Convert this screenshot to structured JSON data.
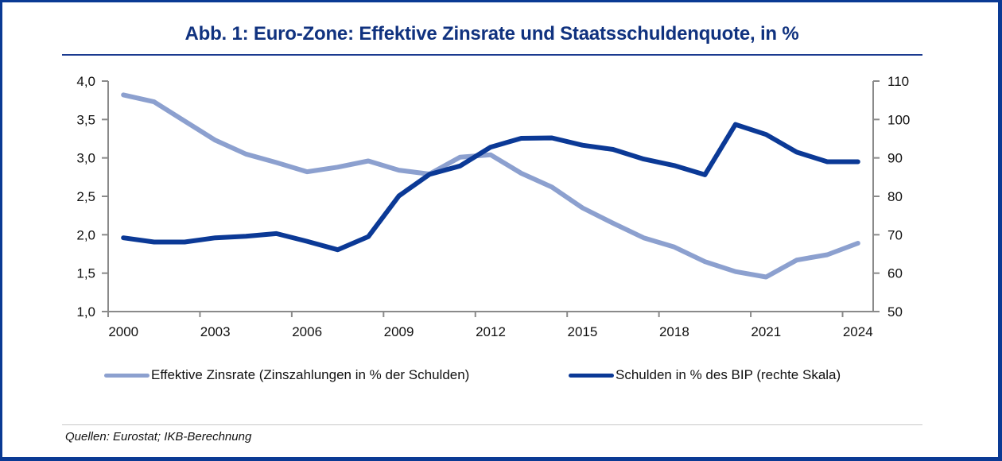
{
  "title": "Abb. 1: Euro-Zone: Effektive Zinsrate und Staatsschuldenquote, in %",
  "source": "Quellen: Eurostat; IKB-Berechnung",
  "colors": {
    "frame": "#0a3a94",
    "title": "#10327f",
    "series_light": "#8ca0cf",
    "series_dark": "#0b3996",
    "axis": "#8a8a8a"
  },
  "chart_data": {
    "type": "line",
    "title": "Abb. 1: Euro-Zone: Effektive Zinsrate und Staatsschuldenquote, in %",
    "xlabel": "",
    "ylabel_left": "",
    "ylabel_right": "",
    "x": [
      2000,
      2001,
      2002,
      2003,
      2004,
      2005,
      2006,
      2007,
      2008,
      2009,
      2010,
      2011,
      2012,
      2013,
      2014,
      2015,
      2016,
      2017,
      2018,
      2019,
      2020,
      2021,
      2022,
      2023,
      2024
    ],
    "x_tick_labels": [
      "2000",
      "2003",
      "2006",
      "2009",
      "2012",
      "2015",
      "2018",
      "2021",
      "2024"
    ],
    "y_left": {
      "range": [
        1.0,
        4.0
      ],
      "ticks": [
        "1,0",
        "1,5",
        "2,0",
        "2,5",
        "3,0",
        "3,5",
        "4,0"
      ],
      "tick_values": [
        1.0,
        1.5,
        2.0,
        2.5,
        3.0,
        3.5,
        4.0
      ]
    },
    "y_right": {
      "range": [
        50,
        110
      ],
      "ticks": [
        "50",
        "60",
        "70",
        "80",
        "90",
        "100",
        "110"
      ],
      "tick_values": [
        50,
        60,
        70,
        80,
        90,
        100,
        110
      ]
    },
    "grid": false,
    "legend_position": "bottom",
    "series": [
      {
        "name": "Effektive Zinsrate (Zinszahlungen in % der Schulden)",
        "axis": "left",
        "color": "#8ca0cf",
        "values": [
          3.82,
          3.73,
          3.48,
          3.23,
          3.05,
          2.94,
          2.82,
          2.88,
          2.96,
          2.84,
          2.79,
          3.01,
          3.04,
          2.8,
          2.62,
          2.35,
          2.15,
          1.96,
          1.84,
          1.65,
          1.52,
          1.45,
          1.67,
          1.74,
          1.89
        ]
      },
      {
        "name": "Schulden in % des BIP (rechte Skala)",
        "axis": "right",
        "color": "#0b3996",
        "values": [
          69.2,
          68.1,
          68.1,
          69.2,
          69.6,
          70.3,
          68.3,
          66.1,
          69.5,
          80.1,
          85.7,
          87.9,
          92.8,
          95.1,
          95.2,
          93.3,
          92.2,
          89.7,
          88.0,
          85.6,
          98.7,
          96.1,
          91.5,
          89.0,
          89.0
        ]
      }
    ]
  }
}
